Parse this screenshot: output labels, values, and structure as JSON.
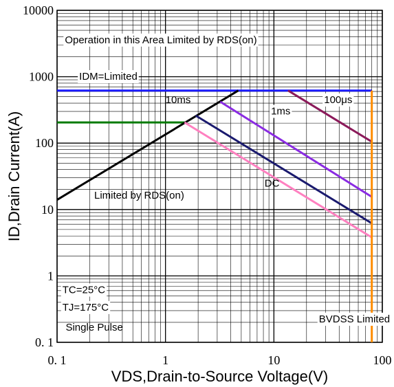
{
  "chart_data": {
    "type": "line",
    "xlabel": "VDS,Drain-to-Source Voltage(V)",
    "ylabel": "ID,Drain Current(A)",
    "xscale": "log",
    "yscale": "log",
    "xlim": [
      0.1,
      100
    ],
    "ylim": [
      0.1,
      10000
    ],
    "grid": true,
    "x_ticks": [
      {
        "value": 0.1,
        "label": "0. 1"
      },
      {
        "value": 1,
        "label": "1"
      },
      {
        "value": 10,
        "label": "10"
      },
      {
        "value": 100,
        "label": "100"
      }
    ],
    "y_ticks": [
      {
        "value": 0.1,
        "label": "0. 1"
      },
      {
        "value": 1,
        "label": "1"
      },
      {
        "value": 10,
        "label": "10"
      },
      {
        "value": 100,
        "label": "100"
      },
      {
        "value": 1000,
        "label": "1000"
      },
      {
        "value": 10000,
        "label": "10000"
      }
    ],
    "series": [
      {
        "color": "#1a1aff",
        "points": [
          [
            0.1,
            620
          ],
          [
            80,
            620
          ]
        ]
      },
      {
        "color": "#007a00",
        "points": [
          [
            0.1,
            205
          ],
          [
            1.5,
            205
          ]
        ]
      },
      {
        "color": "#000000",
        "points": [
          [
            0.1,
            14
          ],
          [
            4.7,
            620
          ]
        ]
      },
      {
        "color": "#ff80c0",
        "points": [
          [
            1.5,
            205
          ],
          [
            80,
            3.8
          ]
        ]
      },
      {
        "color": "#1a1a6e",
        "points": [
          [
            1.9,
            260
          ],
          [
            80,
            6.2
          ]
        ]
      },
      {
        "color": "#8a2be2",
        "points": [
          [
            3.2,
            420
          ],
          [
            80,
            15.5
          ]
        ]
      },
      {
        "color": "#8b1a5a",
        "points": [
          [
            13.5,
            620
          ],
          [
            80,
            105
          ]
        ]
      },
      {
        "color": "#ff8c00",
        "points": [
          [
            80,
            620
          ],
          [
            80,
            0.1
          ]
        ]
      }
    ],
    "annotations": [
      {
        "text": "Operation in this Area Limited by RDS(on)",
        "x": 0.118,
        "y": 3200,
        "boxed": true
      },
      {
        "text": "IDM=Limited",
        "x": 0.16,
        "y": 900,
        "boxed": true
      },
      {
        "text": "10ms",
        "x": 1.0,
        "y": 400,
        "boxed": false
      },
      {
        "text": "1ms",
        "x": 9.4,
        "y": 270,
        "boxed": true
      },
      {
        "text": "100μs",
        "x": 29,
        "y": 400,
        "boxed": true
      },
      {
        "text": "Limited by RDS(on)",
        "x": 0.22,
        "y": 14.5,
        "boxed": false
      },
      {
        "text": "DC",
        "x": 8.2,
        "y": 22,
        "boxed": false
      },
      {
        "text": "TC=25°C",
        "x": 0.112,
        "y": 0.55,
        "boxed": true
      },
      {
        "text": "TJ=175°C",
        "x": 0.112,
        "y": 0.3,
        "boxed": true
      },
      {
        "text": "Single Pulse",
        "x": 0.12,
        "y": 0.15,
        "boxed": false
      },
      {
        "text": "BVDSS Limited",
        "x": 26,
        "y": 0.2,
        "boxed": true
      }
    ]
  }
}
